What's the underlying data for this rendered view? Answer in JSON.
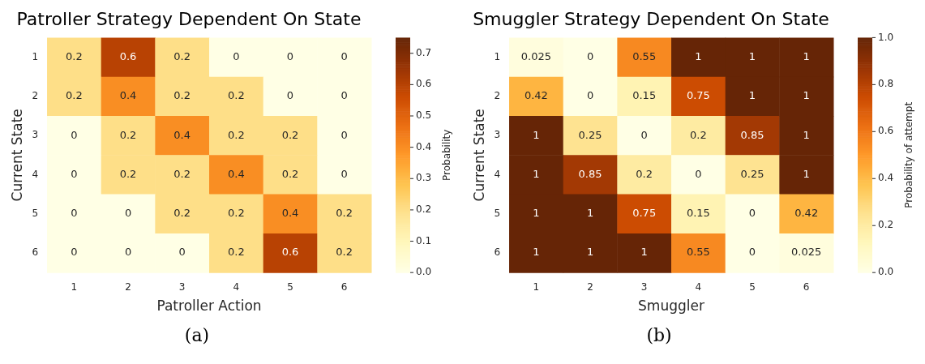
{
  "chart_data": [
    {
      "type": "heatmap",
      "title": "Patroller Strategy Dependent On State",
      "xlabel": "Patroller Action",
      "ylabel": "Current State",
      "clabel": "Probability",
      "categories": [
        "1",
        "2",
        "3",
        "4",
        "5",
        "6"
      ],
      "y_categories": [
        "1",
        "2",
        "3",
        "4",
        "5",
        "6"
      ],
      "cells": [
        [
          0.2,
          0.6,
          0.2,
          0,
          0,
          0
        ],
        [
          0.2,
          0.4,
          0.2,
          0.2,
          0,
          0
        ],
        [
          0,
          0.2,
          0.4,
          0.2,
          0.2,
          0
        ],
        [
          0,
          0.2,
          0.2,
          0.4,
          0.2,
          0
        ],
        [
          0,
          0,
          0.2,
          0.2,
          0.4,
          0.2
        ],
        [
          0,
          0,
          0,
          0.2,
          0.6,
          0.2
        ]
      ],
      "data_labels": true,
      "clim": [
        0,
        0.75
      ],
      "cticks": [
        {
          "value": 0,
          "label": "0.0"
        },
        {
          "value": 0.1,
          "label": "0.1"
        },
        {
          "value": 0.2,
          "label": "0.2"
        },
        {
          "value": 0.3,
          "label": "0.3"
        },
        {
          "value": 0.4,
          "label": "0.4"
        },
        {
          "value": 0.5,
          "label": "0.5"
        },
        {
          "value": 0.6,
          "label": "0.6"
        },
        {
          "value": 0.7,
          "label": "0.7"
        }
      ],
      "annotations": [
        "(a)"
      ]
    },
    {
      "type": "heatmap",
      "title": "Smuggler Strategy Dependent On State",
      "xlabel": "Smuggler",
      "ylabel": "Current State",
      "clabel": "Probability of attempt",
      "categories": [
        "1",
        "2",
        "3",
        "4",
        "5",
        "6"
      ],
      "y_categories": [
        "1",
        "2",
        "3",
        "4",
        "5",
        "6"
      ],
      "cells": [
        [
          0.025,
          0,
          0.55,
          1,
          1,
          1
        ],
        [
          0.42,
          0,
          0.15,
          0.75,
          1,
          1
        ],
        [
          1,
          0.25,
          0,
          0.2,
          0.85,
          1
        ],
        [
          1,
          0.85,
          0.2,
          0,
          0.25,
          1
        ],
        [
          1,
          1,
          0.75,
          0.15,
          0,
          0.42
        ],
        [
          1,
          1,
          1,
          0.55,
          0,
          0.025
        ]
      ],
      "data_labels": true,
      "clim": [
        0,
        1
      ],
      "cticks": [
        {
          "value": 0,
          "label": "0.0"
        },
        {
          "value": 0.2,
          "label": "0.2"
        },
        {
          "value": 0.4,
          "label": "0.4"
        },
        {
          "value": 0.6,
          "label": "0.6"
        },
        {
          "value": 0.8,
          "label": "0.8"
        },
        {
          "value": 1,
          "label": "1.0"
        }
      ],
      "annotations": [
        "(b)"
      ]
    }
  ]
}
